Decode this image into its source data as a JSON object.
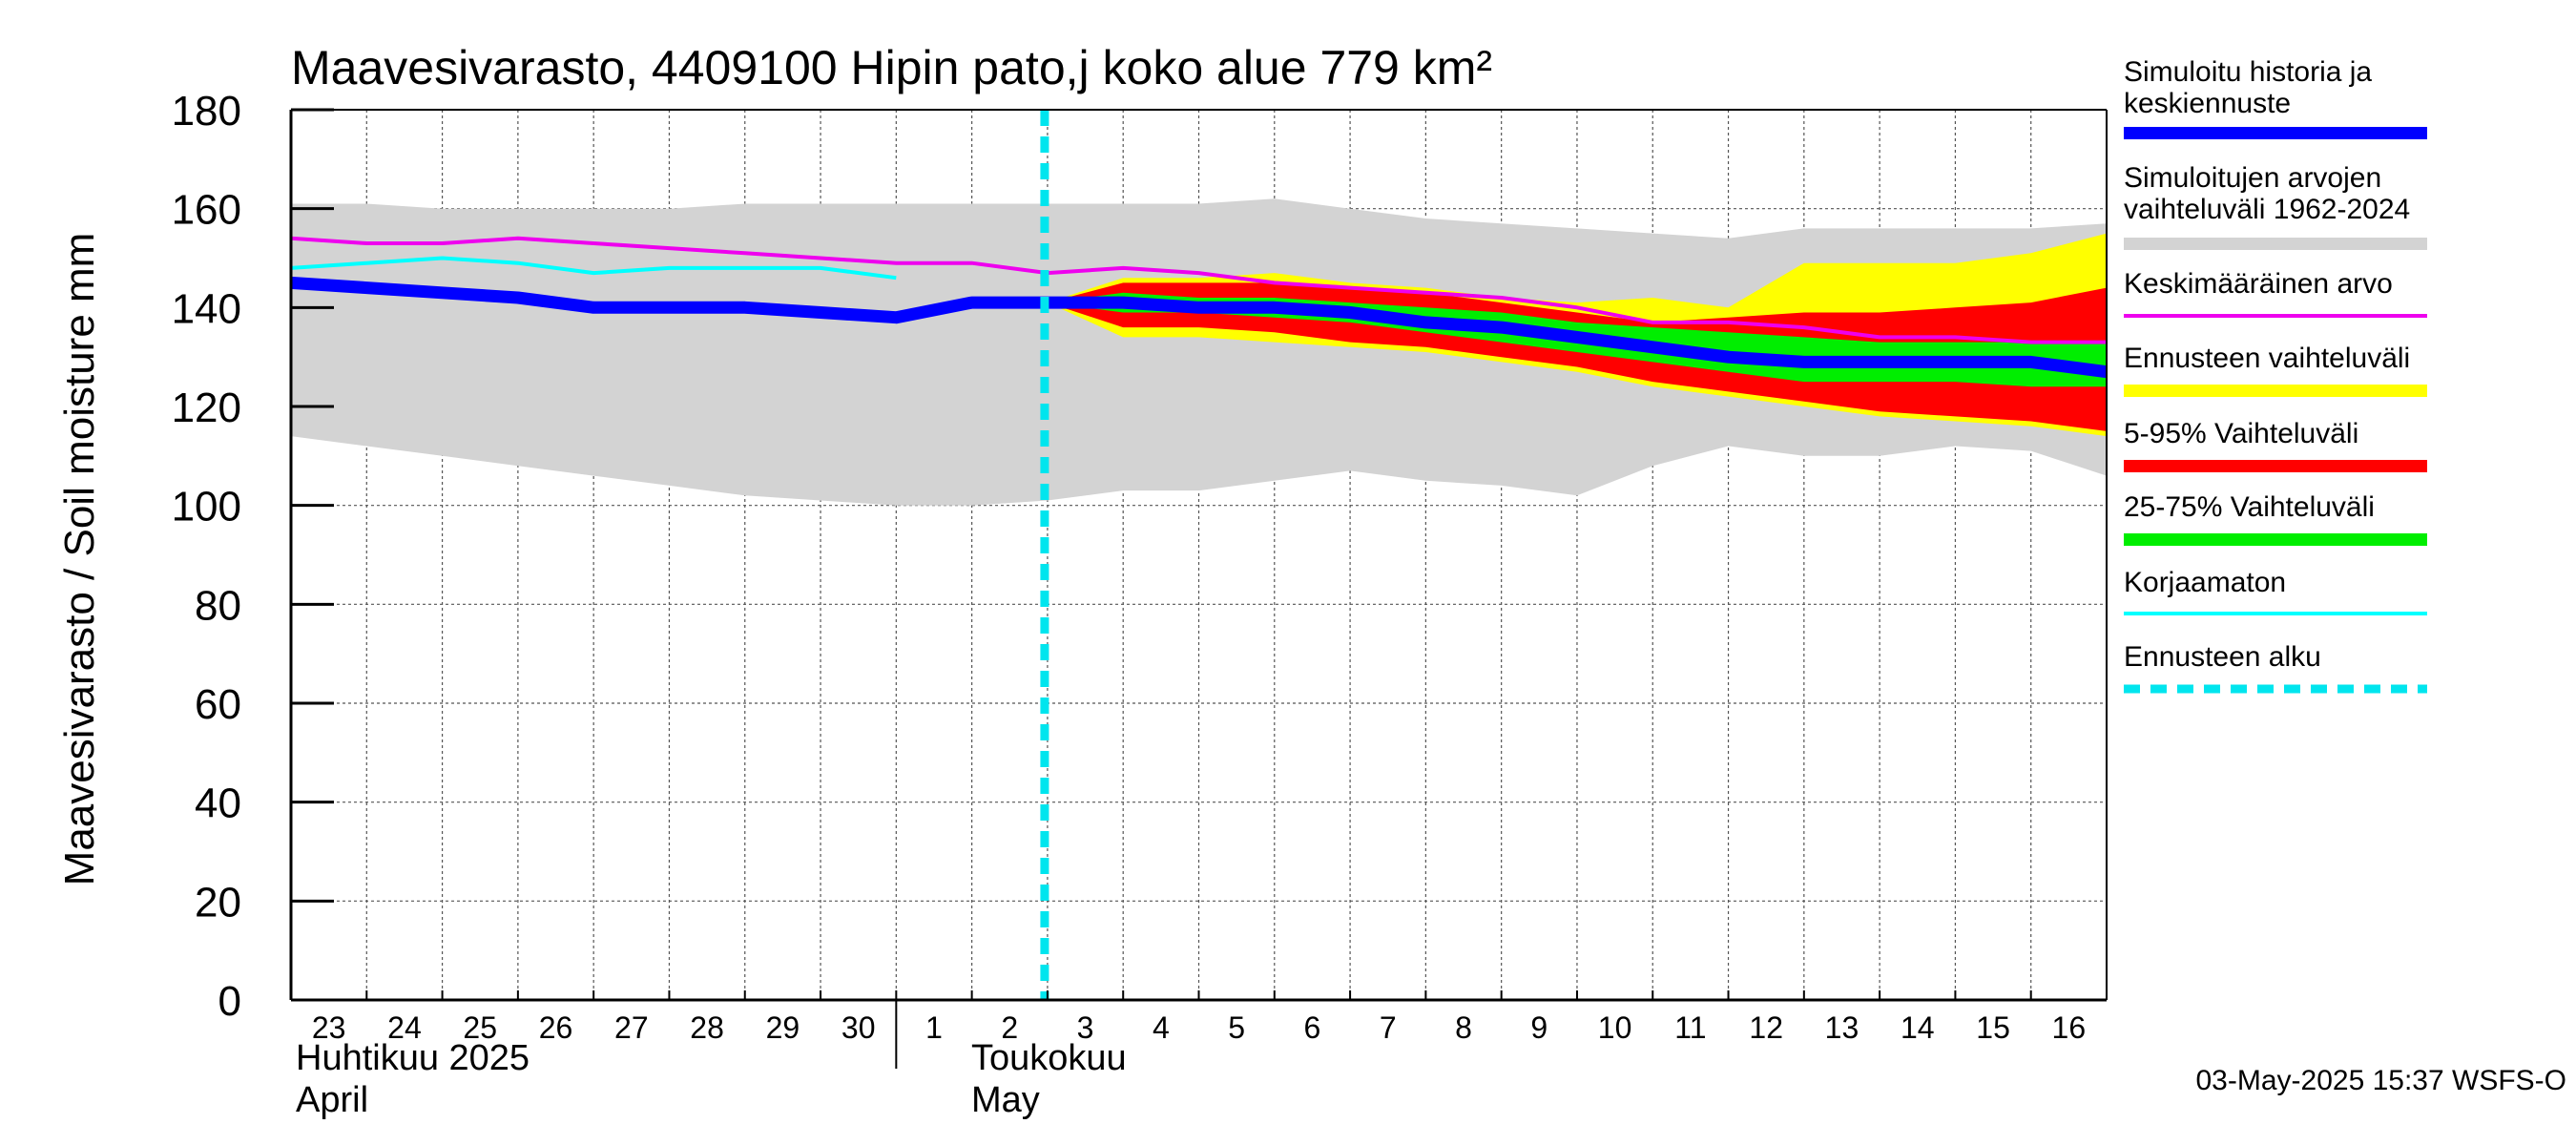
{
  "chart_data": {
    "type": "area",
    "title": "Maavesivarasto, 4409100 Hipin pato,j koko alue 779 km²",
    "ylabel": "Maavesivarasto / Soil moisture   mm",
    "ylim": [
      0,
      180
    ],
    "yticks": [
      "0",
      "20",
      "40",
      "60",
      "80",
      "100",
      "120",
      "140",
      "160",
      "180"
    ],
    "xlim": [
      0,
      24
    ],
    "day_labels": [
      "23",
      "24",
      "25",
      "26",
      "27",
      "28",
      "29",
      "30",
      "1",
      "2",
      "3",
      "4",
      "5",
      "6",
      "7",
      "8",
      "9",
      "10",
      "11",
      "12",
      "13",
      "14",
      "15",
      "16"
    ],
    "month_labels": [
      {
        "fi": "Huhtikuu  2025",
        "en": "April"
      },
      {
        "fi": "Toukokuu",
        "en": "May"
      }
    ],
    "forecast_start": 10,
    "footer": "03-May-2025 15:37 WSFS-O",
    "legend": [
      {
        "label": "Simuloitu historia ja keskiennuste",
        "color": "#0000ff"
      },
      {
        "label": "Simuloitujen arvojen vaihteluväli 1962-2024",
        "color": "#d3d3d3"
      },
      {
        "label": "Keskimääräinen arvo",
        "color": "#ee00ee"
      },
      {
        "label": "Ennusteen vaihteluväli",
        "color": "#ffff00"
      },
      {
        "label": "5-95% Vaihteluväli",
        "color": "#ff0000"
      },
      {
        "label": "25-75% Vaihteluväli",
        "color": "#00ee00"
      },
      {
        "label": "Korjaamaton",
        "color": "#00ffff"
      },
      {
        "label": "Ennusteen alku",
        "color": "#00e5ee"
      }
    ],
    "series": [
      {
        "name": "Simuloitujen arvojen vaihteluväli 1962-2024",
        "x": [
          0,
          1,
          2,
          3,
          4,
          5,
          6,
          7,
          8,
          9,
          10,
          11,
          12,
          13,
          14,
          15,
          16,
          17,
          18,
          19,
          20,
          21,
          22,
          23,
          24
        ],
        "upper": [
          161,
          161,
          160,
          160,
          160,
          160,
          161,
          161,
          161,
          161,
          161,
          161,
          161,
          162,
          160,
          158,
          157,
          156,
          155,
          154,
          156,
          156,
          156,
          156,
          157
        ],
        "lower": [
          114,
          112,
          110,
          108,
          106,
          104,
          102,
          101,
          100,
          100,
          101,
          103,
          103,
          105,
          107,
          105,
          104,
          102,
          108,
          112,
          110,
          110,
          112,
          111,
          106
        ]
      },
      {
        "name": "Ennusteen vaihteluväli",
        "x": [
          10,
          11,
          12,
          13,
          14,
          15,
          16,
          17,
          18,
          19,
          20,
          21,
          22,
          23,
          24
        ],
        "upper": [
          141,
          146,
          146,
          147,
          145,
          144,
          142,
          141,
          142,
          140,
          149,
          149,
          149,
          151,
          155
        ],
        "lower": [
          141,
          134,
          134,
          133,
          132,
          131,
          129,
          127,
          124,
          122,
          120,
          118,
          117,
          116,
          114
        ]
      },
      {
        "name": "5-95% Vaihteluväli",
        "x": [
          10,
          11,
          12,
          13,
          14,
          15,
          16,
          17,
          18,
          19,
          20,
          21,
          22,
          23,
          24
        ],
        "upper": [
          141,
          145,
          145,
          145,
          144,
          143,
          141,
          139,
          137,
          138,
          139,
          139,
          140,
          141,
          144
        ],
        "lower": [
          141,
          136,
          136,
          135,
          133,
          132,
          130,
          128,
          125,
          123,
          121,
          119,
          118,
          117,
          115
        ]
      },
      {
        "name": "25-75% Vaihteluväli",
        "x": [
          10,
          11,
          12,
          13,
          14,
          15,
          16,
          17,
          18,
          19,
          20,
          21,
          22,
          23,
          24
        ],
        "upper": [
          141,
          143,
          142,
          142,
          141,
          140,
          139,
          137,
          136,
          135,
          134,
          133,
          133,
          133,
          133
        ],
        "lower": [
          141,
          139,
          139,
          138,
          137,
          135,
          133,
          131,
          129,
          127,
          125,
          125,
          125,
          124,
          124
        ]
      },
      {
        "name": "Keskimääräinen arvo",
        "x": [
          0,
          1,
          2,
          3,
          4,
          5,
          6,
          7,
          8,
          9,
          10,
          11,
          12,
          13,
          14,
          15,
          16,
          17,
          18,
          19,
          20,
          21,
          22,
          23,
          24
        ],
        "y": [
          154,
          153,
          153,
          154,
          153,
          152,
          151,
          150,
          149,
          149,
          147,
          148,
          147,
          145,
          144,
          143,
          142,
          140,
          137,
          137,
          136,
          134,
          134,
          133,
          133
        ]
      },
      {
        "name": "Korjaamaton",
        "x": [
          0,
          1,
          2,
          3,
          4,
          5,
          6,
          7,
          8
        ],
        "y": [
          148,
          149,
          150,
          149,
          147,
          148,
          148,
          148,
          146
        ]
      },
      {
        "name": "Simuloitu historia ja keskiennuste",
        "x": [
          0,
          1,
          2,
          3,
          4,
          5,
          6,
          7,
          8,
          9,
          10,
          11,
          12,
          13,
          14,
          15,
          16,
          17,
          18,
          19,
          20,
          21,
          22,
          23,
          24
        ],
        "y": [
          145,
          144,
          143,
          142,
          140,
          140,
          140,
          139,
          138,
          141,
          141,
          141,
          140,
          140,
          139,
          137,
          136,
          134,
          132,
          130,
          129,
          129,
          129,
          129,
          127
        ]
      }
    ]
  }
}
